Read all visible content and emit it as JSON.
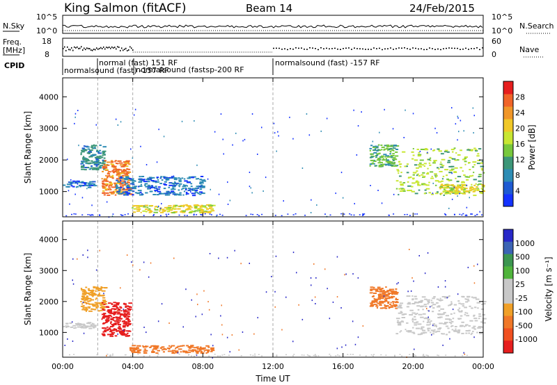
{
  "header": {
    "station": "King Salmon (fitACF)",
    "beam": "Beam 14",
    "date": "24/Feb/2015"
  },
  "top_panels": {
    "nsky_label": "N.Sky",
    "nsearch_label": "N.Search",
    "nsky_ticks": [
      "10^5",
      "10^0"
    ],
    "nsearch_ticks": [
      "10^5",
      "10^0"
    ],
    "freq_label_line1": "Freq.",
    "freq_label_line2": "[MHz]",
    "freq_ticks": [
      "18",
      "8"
    ],
    "nave_label": "Nave",
    "nave_ticks": [
      "60",
      "0"
    ],
    "cpid_label": "CPID",
    "cpid_entries": [
      "normalsound (fast) -157 RF",
      "normal (fast) 151 RF",
      "normalsound (fastsp-200 RF",
      "normalsound (fast) -157 RF"
    ]
  },
  "chart_data": [
    {
      "type": "heatmap",
      "name": "power",
      "ylabel": "Slant Range [km]",
      "yticks": [
        1000,
        2000,
        3000,
        4000
      ],
      "ylim": [
        200,
        4600
      ],
      "xlim_hours": [
        0,
        24
      ],
      "colorbar": {
        "label": "Power [dB]",
        "ticks": [
          4,
          8,
          12,
          16,
          20,
          24,
          28
        ],
        "range": [
          0,
          32
        ],
        "colors": [
          "#1432ff",
          "#1e5ad2",
          "#2d8cb4",
          "#3c9678",
          "#78c83c",
          "#c8e632",
          "#f0c828",
          "#f09628",
          "#f06428",
          "#e61e1e"
        ]
      },
      "regions": [
        {
          "t": [
            0.0,
            1.8
          ],
          "r": [
            1150,
            1350
          ],
          "level": 8
        },
        {
          "t": [
            1.0,
            2.4
          ],
          "r": [
            1700,
            2500
          ],
          "level": 10
        },
        {
          "t": [
            2.2,
            3.8
          ],
          "r": [
            900,
            2000
          ],
          "level": 26
        },
        {
          "t": [
            3.8,
            8.5
          ],
          "r": [
            350,
            600
          ],
          "level": 20
        },
        {
          "t": [
            3.0,
            8.0
          ],
          "r": [
            900,
            1500
          ],
          "level": 8
        },
        {
          "t": [
            17.5,
            19.0
          ],
          "r": [
            1800,
            2500
          ],
          "level": 14
        },
        {
          "t": [
            19.0,
            24.0
          ],
          "r": [
            900,
            2400
          ],
          "level": 16
        },
        {
          "t": [
            21.5,
            24.0
          ],
          "r": [
            950,
            1250
          ],
          "level": 22
        }
      ]
    },
    {
      "type": "heatmap",
      "name": "velocity",
      "xlabel": "Time UT",
      "ylabel": "Slant Range [km]",
      "yticks": [
        1000,
        2000,
        3000,
        4000
      ],
      "ylim": [
        200,
        4600
      ],
      "xticks": [
        "00:00",
        "04:00",
        "08:00",
        "12:00",
        "16:00",
        "20:00",
        "00:00"
      ],
      "xlim_hours": [
        0,
        24
      ],
      "colorbar": {
        "label": "Velocity [m s⁻¹]",
        "ticks": [
          "1000",
          "500",
          "100",
          "25",
          "-25",
          "-100",
          "-500",
          "-1000"
        ],
        "colors": [
          "#2828c8",
          "#3c64b4",
          "#3c9650",
          "#50b43c",
          "#c8c8c8",
          "#c8c8c8",
          "#f0a028",
          "#f07828",
          "#f05020",
          "#e61e1e"
        ]
      },
      "regions": [
        {
          "t": [
            0.0,
            1.8
          ],
          "r": [
            1150,
            1350
          ],
          "velocity": 0
        },
        {
          "t": [
            1.0,
            2.4
          ],
          "r": [
            1700,
            2500
          ],
          "velocity": -100
        },
        {
          "t": [
            2.2,
            3.8
          ],
          "r": [
            900,
            2000
          ],
          "velocity": -800
        },
        {
          "t": [
            3.8,
            8.5
          ],
          "r": [
            350,
            600
          ],
          "velocity": -300
        },
        {
          "t": [
            17.5,
            19.0
          ],
          "r": [
            1800,
            2500
          ],
          "velocity": -200
        },
        {
          "t": [
            19.0,
            24.0
          ],
          "r": [
            950,
            2200
          ],
          "velocity": 0
        }
      ]
    }
  ]
}
